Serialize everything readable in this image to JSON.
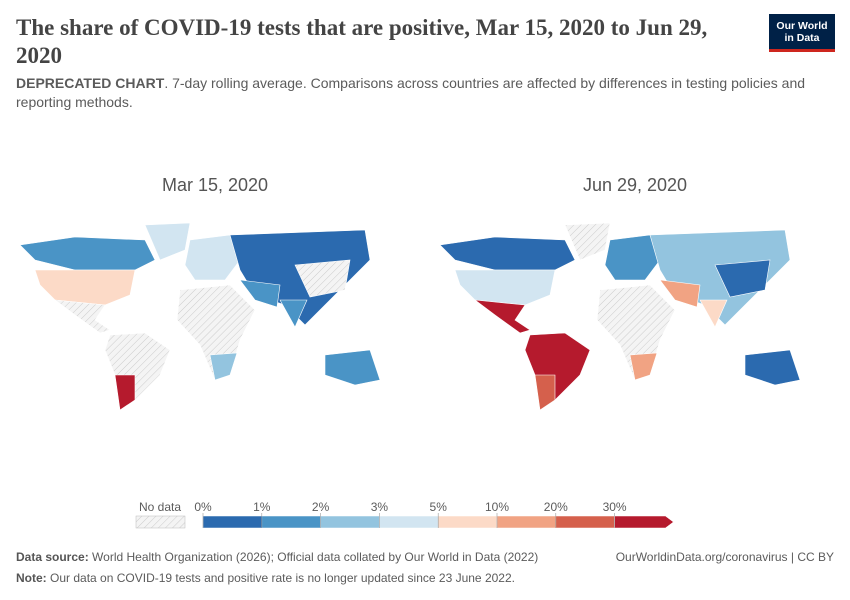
{
  "header": {
    "title": "The share of COVID-19 tests that are positive, Mar 15, 2020 to Jun 29, 2020",
    "subtitle_bold": "DEPRECATED CHART",
    "subtitle": ". 7-day rolling average. Comparisons across countries are affected by differences in testing policies and reporting methods.",
    "logo_line1": "Our World",
    "logo_line2": "in Data"
  },
  "maps": [
    {
      "title": "Mar 15, 2020"
    },
    {
      "title": "Jun 29, 2020"
    }
  ],
  "legend": {
    "no_data": "No data",
    "ticks": [
      {
        "value": 0,
        "label": "0%"
      },
      {
        "value": 1,
        "label": "1%"
      },
      {
        "value": 2,
        "label": "2%"
      },
      {
        "value": 3,
        "label": "3%"
      },
      {
        "value": 5,
        "label": "5%"
      },
      {
        "value": 10,
        "label": "10%"
      },
      {
        "value": 20,
        "label": "20%"
      },
      {
        "value": 30,
        "label": "30%"
      }
    ],
    "colors": [
      "#2b6aaf",
      "#4a94c6",
      "#93c4df",
      "#d2e5f1",
      "#fcdac7",
      "#f1a383",
      "#d5604c",
      "#b51a2d"
    ]
  },
  "footer": {
    "source_label": "Data source:",
    "source": "World Health Organization (2026); Official data collated by Our World in Data (2022)",
    "url": "OurWorldinData.org/coronavirus | CC BY",
    "note_label": "Note:",
    "note": "Our data on COVID-19 tests and positive rate is no longer updated since 23 June 2022."
  }
}
